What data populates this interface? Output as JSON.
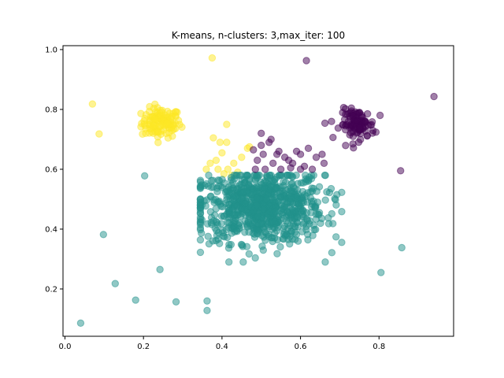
{
  "chart_data": {
    "type": "scatter",
    "title": "K-means, n-clusters: 3,max_iter: 100",
    "xlabel": "",
    "ylabel": "",
    "xlim": [
      -0.005,
      0.99
    ],
    "ylim": [
      0.042,
      1.013
    ],
    "xticks": [
      0.0,
      0.2,
      0.4,
      0.6,
      0.8
    ],
    "xtick_labels": [
      "0.0",
      "0.2",
      "0.4",
      "0.6",
      "0.8"
    ],
    "yticks": [
      0.2,
      0.4,
      0.6,
      0.8,
      1.0
    ],
    "ytick_labels": [
      "0.2",
      "0.4",
      "0.6",
      "0.8",
      "1.0"
    ],
    "grid": false,
    "marker_alpha": 0.5,
    "series": [
      {
        "color": "#fde725",
        "cluster": {
          "n": 120,
          "cx": 0.245,
          "cy": 0.755,
          "sx": 0.025,
          "sy": 0.025
        },
        "points": [
          [
            0.07,
            0.818
          ],
          [
            0.087,
            0.718
          ],
          [
            0.375,
            0.972
          ],
          [
            0.412,
            0.75
          ],
          [
            0.378,
            0.705
          ],
          [
            0.395,
            0.69
          ],
          [
            0.412,
            0.69
          ],
          [
            0.36,
            0.6
          ],
          [
            0.37,
            0.62
          ],
          [
            0.385,
            0.63
          ],
          [
            0.4,
            0.655
          ],
          [
            0.415,
            0.6
          ],
          [
            0.43,
            0.62
          ],
          [
            0.45,
            0.64
          ],
          [
            0.465,
            0.67
          ],
          [
            0.47,
            0.675
          ],
          [
            0.44,
            0.59
          ],
          [
            0.425,
            0.58
          ],
          [
            0.39,
            0.6
          ],
          [
            0.405,
            0.585
          ]
        ]
      },
      {
        "color": "#21918c",
        "cluster": {
          "n": 850,
          "cx": 0.5,
          "cy": 0.475,
          "sx": 0.08,
          "sy": 0.06
        },
        "points": [
          [
            0.04,
            0.086
          ],
          [
            0.098,
            0.382
          ],
          [
            0.128,
            0.218
          ],
          [
            0.18,
            0.163
          ],
          [
            0.242,
            0.265
          ],
          [
            0.283,
            0.157
          ],
          [
            0.362,
            0.16
          ],
          [
            0.362,
            0.128
          ],
          [
            0.203,
            0.578
          ],
          [
            0.663,
            0.29
          ],
          [
            0.805,
            0.255
          ],
          [
            0.858,
            0.338
          ]
        ]
      },
      {
        "color": "#440154",
        "cluster": {
          "n": 110,
          "cx": 0.745,
          "cy": 0.75,
          "sx": 0.022,
          "sy": 0.025
        },
        "points": [
          [
            0.615,
            0.963
          ],
          [
            0.94,
            0.843
          ],
          [
            0.855,
            0.595
          ],
          [
            0.48,
            0.665
          ],
          [
            0.5,
            0.68
          ],
          [
            0.52,
            0.69
          ],
          [
            0.54,
            0.65
          ],
          [
            0.56,
            0.64
          ],
          [
            0.58,
            0.62
          ],
          [
            0.6,
            0.6
          ],
          [
            0.62,
            0.67
          ],
          [
            0.64,
            0.64
          ],
          [
            0.66,
            0.62
          ],
          [
            0.5,
            0.72
          ],
          [
            0.49,
            0.63
          ],
          [
            0.53,
            0.62
          ],
          [
            0.55,
            0.6
          ],
          [
            0.59,
            0.66
          ],
          [
            0.61,
            0.61
          ],
          [
            0.63,
            0.6
          ],
          [
            0.51,
            0.6
          ],
          [
            0.57,
            0.63
          ],
          [
            0.485,
            0.6
          ],
          [
            0.505,
            0.65
          ],
          [
            0.545,
            0.66
          ],
          [
            0.525,
            0.7
          ],
          [
            0.6,
            0.65
          ],
          [
            0.575,
            0.605
          ],
          [
            0.655,
            0.65
          ]
        ]
      }
    ]
  }
}
